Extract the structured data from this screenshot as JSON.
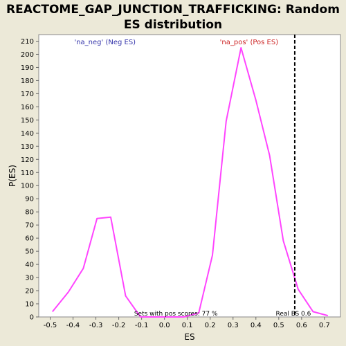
{
  "chart_data": {
    "type": "line",
    "title_line1": "REACTOME_GAP_JUNCTION_TRAFFICKING: Random",
    "title_line2": "ES distribution",
    "xlabel": "ES",
    "ylabel": "P(ES)",
    "xlim": [
      -0.55,
      0.77
    ],
    "ylim": [
      0,
      215
    ],
    "xticks": [
      -0.5,
      -0.4,
      -0.3,
      -0.2,
      -0.1,
      0.0,
      0.1,
      0.2,
      0.3,
      0.4,
      0.5,
      0.6,
      0.7
    ],
    "xtick_labels": [
      "-0.5",
      "-0.4",
      "-0.3",
      "-0.2",
      "-0.1",
      "0.0",
      "0.1",
      "0.2",
      "0.3",
      "0.4",
      "0.5",
      "0.6",
      "0.7"
    ],
    "yticks": [
      0,
      10,
      20,
      30,
      40,
      50,
      60,
      70,
      80,
      90,
      100,
      110,
      120,
      130,
      140,
      150,
      160,
      170,
      180,
      190,
      200,
      210
    ],
    "ytick_labels": [
      "0",
      "10",
      "20",
      "30",
      "40",
      "50",
      "60",
      "70",
      "80",
      "90",
      "100",
      "110",
      "120",
      "130",
      "140",
      "150",
      "160",
      "170",
      "180",
      "190",
      "200",
      "210"
    ],
    "grid": false,
    "series": [
      {
        "color": "#FF44FF",
        "x": [
          -0.49,
          -0.42,
          -0.355,
          -0.295,
          -0.235,
          -0.17,
          -0.105,
          -0.04,
          0.02,
          0.085,
          0.15,
          0.21,
          0.27,
          0.335,
          0.4,
          0.46,
          0.52,
          0.585,
          0.65,
          0.715
        ],
        "y": [
          4,
          19,
          37,
          75,
          76,
          16,
          0,
          0,
          0,
          0,
          3,
          47,
          149,
          205,
          165,
          123,
          58,
          21,
          4,
          1
        ]
      }
    ],
    "real_es": {
      "x": 0.57,
      "label": "Real ES 0.6",
      "color": "#000000"
    },
    "annotations": {
      "neg_label": "'na_neg' (Neg ES)",
      "neg_color": "#3333AA",
      "pos_label": "'na_pos' (Pos ES)",
      "pos_color": "#CC2222",
      "pos_scores": "Sets with pos scores: 77 %"
    }
  }
}
